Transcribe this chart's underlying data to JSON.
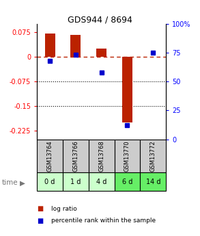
{
  "title": "GDS944 / 8694",
  "samples": [
    "GSM13764",
    "GSM13766",
    "GSM13768",
    "GSM13770",
    "GSM13772"
  ],
  "time_labels": [
    "0 d",
    "1 d",
    "4 d",
    "6 d",
    "14 d"
  ],
  "log_ratios": [
    0.07,
    0.065,
    0.025,
    -0.2,
    0.0
  ],
  "percentile_ranks": [
    68,
    73,
    58,
    12,
    75
  ],
  "ylim_left": [
    -0.25,
    0.1
  ],
  "ylim_right": [
    0,
    100
  ],
  "yticks_left": [
    0.075,
    0,
    -0.075,
    -0.15,
    -0.225
  ],
  "yticks_right": [
    100,
    75,
    50,
    25,
    0
  ],
  "dotted_lines": [
    -0.075,
    -0.15
  ],
  "bar_color": "#bb2200",
  "dot_color": "#0000cc",
  "cell_color_gsm": "#cccccc",
  "cell_color_time_0": "#ccffcc",
  "cell_color_time_1": "#ccffcc",
  "cell_color_time_4": "#ccffcc",
  "cell_color_time_6": "#66ee66",
  "cell_color_time_14": "#66ee66",
  "time_arrow_color": "#777777",
  "background_color": "#ffffff",
  "legend_bar_label": "log ratio",
  "legend_dot_label": "percentile rank within the sample"
}
